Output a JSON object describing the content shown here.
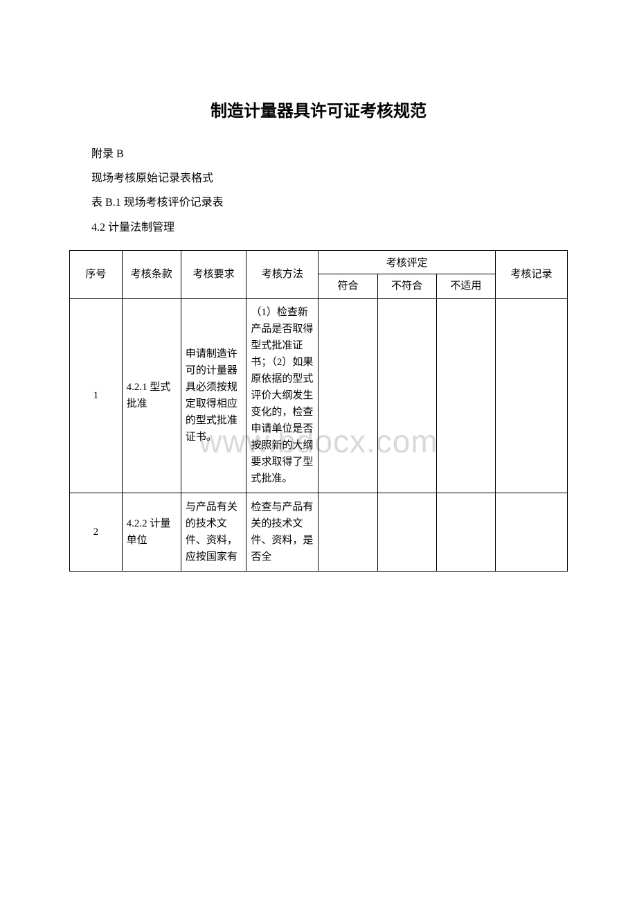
{
  "watermark": "www.bdocx.com",
  "title": "制造计量器具许可证考核规范",
  "preamble": {
    "line1": "附录 B",
    "line2": "现场考核原始记录表格式",
    "line3": "表 B.1 现场考核评价记录表",
    "line4": "4.2 计量法制管理"
  },
  "table": {
    "headers": {
      "seq": "序号",
      "clause": "考核条款",
      "requirement": "考核要求",
      "method": "考核方法",
      "eval_group": "考核评定",
      "eval_conform": "符合",
      "eval_nonconform": "不符合",
      "eval_na": "不适用",
      "record": "考核记录"
    },
    "rows": [
      {
        "seq": "1",
        "clause": "4.2.1 型式批准",
        "requirement": "申请制造许可的计量器具必须按规定取得相应的型式批准证书。",
        "method": "（1）检查新产品是否取得型式批准证书；（2）如果原依据的型式评价大纲发生变化的，检查申请单位是否按照新的大纲要求取得了型式批准。",
        "eval_conform": "",
        "eval_nonconform": "",
        "eval_na": "",
        "record": ""
      },
      {
        "seq": "2",
        "clause": "4.2.2 计量单位",
        "requirement": "与产品有关的技术文件、资料，应按国家有",
        "method": "检查与产品有关的技术文件、资料，是否全",
        "eval_conform": "",
        "eval_nonconform": "",
        "eval_na": "",
        "record": ""
      }
    ]
  },
  "styles": {
    "background_color": "#ffffff",
    "text_color": "#000000",
    "watermark_color": "#d9d9d9",
    "border_color": "#000000",
    "title_fontsize": 24,
    "body_fontsize": 16,
    "table_fontsize": 15
  }
}
